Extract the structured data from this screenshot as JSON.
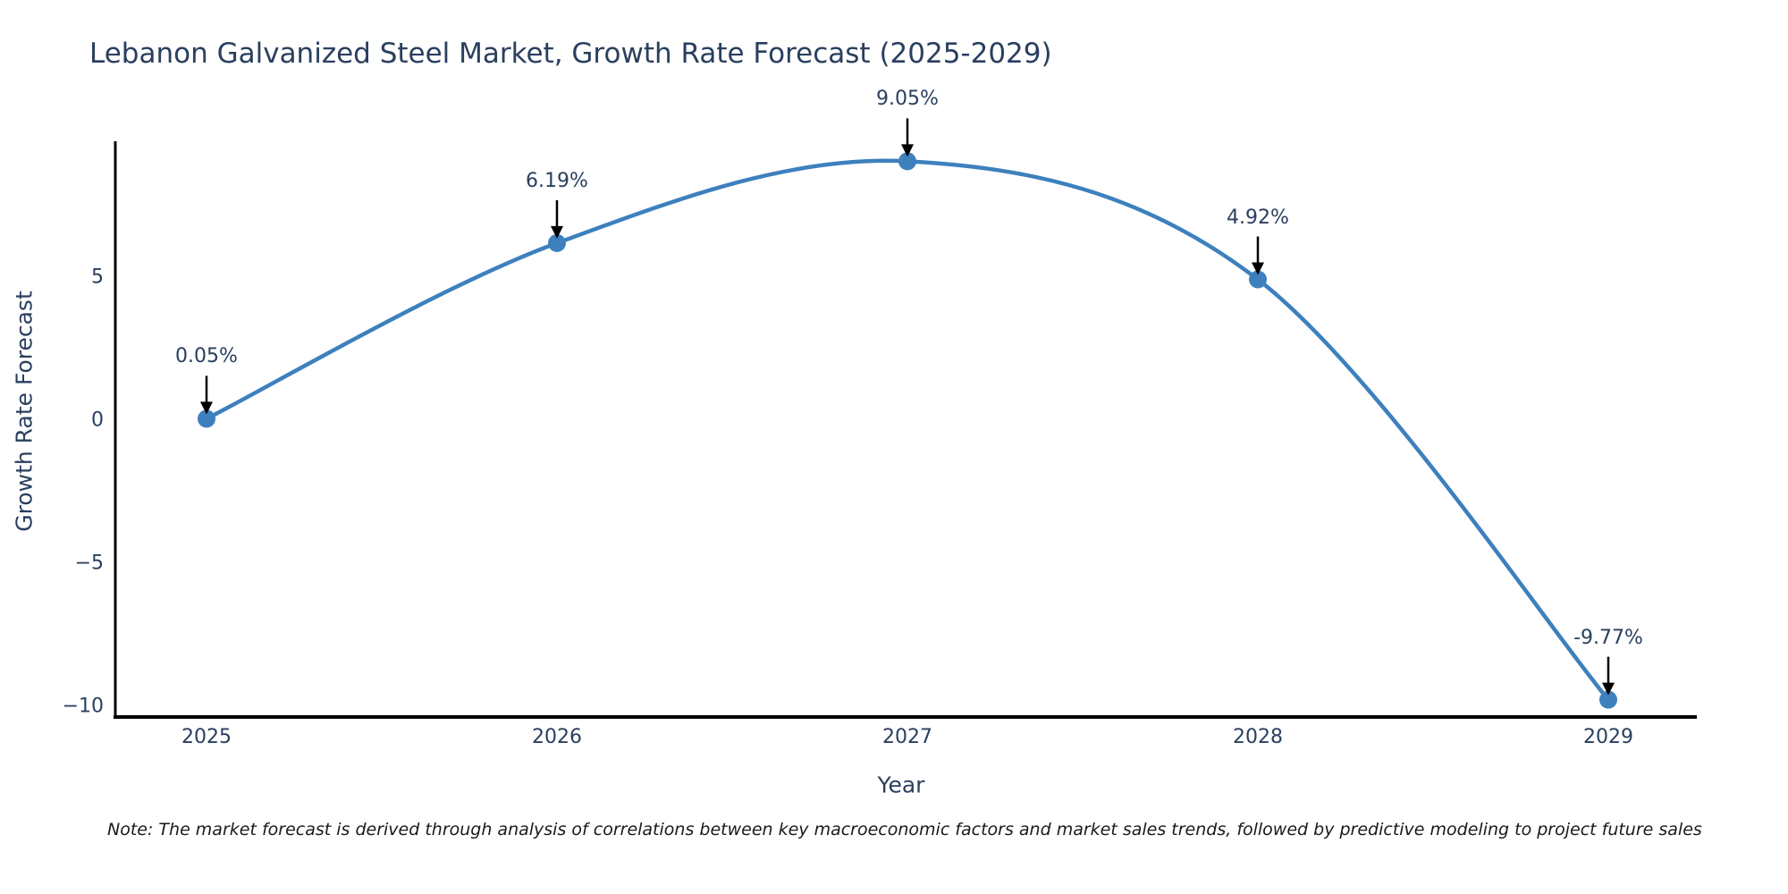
{
  "note": "Note: The market forecast is derived through analysis of correlations between key macroeconomic factors and market sales trends, followed by predictive modeling to project future sales",
  "chart_data": {
    "type": "line",
    "title": "Lebanon Galvanized Steel Market, Growth Rate Forecast (2025-2029)",
    "xlabel": "Year",
    "ylabel": "Growth Rate Forecast",
    "x": [
      2025,
      2026,
      2027,
      2028,
      2029
    ],
    "values": [
      0.05,
      6.19,
      9.05,
      4.92,
      -9.77
    ],
    "point_labels": [
      "0.05%",
      "6.19%",
      "9.05%",
      "4.92%",
      "-9.77%"
    ],
    "xtick_labels": [
      "2025",
      "2026",
      "2027",
      "2028",
      "2029"
    ],
    "ytick_values": [
      5,
      0,
      -5,
      -10
    ],
    "ytick_labels": [
      "5",
      "0",
      "−5",
      "−10"
    ],
    "ylim": [
      -10.4,
      9.75
    ],
    "line_shape": "spline",
    "grid": false,
    "legend": false,
    "line_color": "#3d80bd",
    "marker_color": "#3d80bd",
    "arrow_color": "#000000",
    "axis_color": "#000000",
    "title_color": "#2a3f5f",
    "tick_color": "#2a3f5f"
  }
}
